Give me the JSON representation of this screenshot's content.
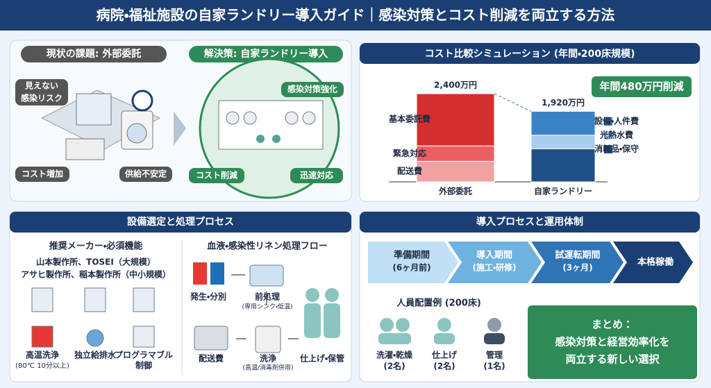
{
  "header": {
    "title": "病院・福祉施設の自家ランドリー導入ガイド｜感染対策とコスト削減を両立する方法"
  },
  "overview": {
    "problem_title": "現状の課題: 外部委託",
    "solution_title": "解決策: 自家ランドリー導入",
    "problem_labels": [
      [
        "見えない",
        "感染リスク"
      ],
      [
        "コスト増加"
      ],
      [
        "供給不安定"
      ]
    ],
    "solution_labels": [
      "感染対策強化",
      "コスト削減",
      "迅速対応"
    ]
  },
  "cost": {
    "title": "コスト比較シミュレーション (年間・200床規模)",
    "saving": "年間480万円削減",
    "bars": [
      {
        "category": "外部委託",
        "total": 2400,
        "total_label": "2,400万円",
        "segments": [
          {
            "name": "配送費",
            "color": "#f2a0a0",
            "value": 560
          },
          {
            "name": "緊急対応",
            "color": "#e86060",
            "value": 420
          },
          {
            "name": "基本委託費",
            "color": "#d32f2f",
            "value": 1420
          }
        ]
      },
      {
        "category": "自家ランドリー",
        "total": 1920,
        "total_label": "1,920万円",
        "segments": [
          {
            "name": "消耗品・保守",
            "color": "#1e4f86",
            "value": 900
          },
          {
            "name": "光熱水費",
            "color": "#a9cdec",
            "value": 370
          },
          {
            "name": "設備・人件費",
            "color": "#3b82c4",
            "value": 650
          }
        ]
      }
    ]
  },
  "equipment": {
    "title": "設備選定と処理プロセス",
    "makers_title": "推奨メーカー・必須機能",
    "makers": [
      "山本製作所、TOSEI（大規模）",
      "アサヒ製作所、稲本製作所（中小規模）"
    ],
    "features": [
      [
        "高温洗浄",
        "(80℃ 10分以上)"
      ],
      [
        "独立給排水"
      ],
      [
        "プログラマブル",
        "制御"
      ]
    ],
    "flow_title": "血液・感染性リネン処理フロー",
    "flow": [
      [
        "発生・分別"
      ],
      [
        "前処理",
        "(専用シンク・低温)"
      ],
      [
        "洗浄",
        "(高温/消毒剤併用)"
      ],
      [
        "仕上げ・保管"
      ],
      [
        "配送費"
      ]
    ]
  },
  "process": {
    "title": "導入プロセスと運用体制",
    "steps": [
      [
        "準備期間",
        "(6ヶ月前)"
      ],
      [
        "導入期間",
        "(施工・研修)"
      ],
      [
        "試運転期間",
        "(3ヶ月)"
      ],
      [
        "本格稼働"
      ]
    ],
    "staff_title": "人員配置例 (200床)",
    "staff": [
      [
        "洗濯・乾燥",
        "(2名)"
      ],
      [
        "仕上げ",
        "(2名)"
      ],
      [
        "管理",
        "(1名)"
      ]
    ],
    "summary": [
      "まとめ：",
      "感染対策と経営効率化を",
      "両立する新しい選択"
    ]
  }
}
